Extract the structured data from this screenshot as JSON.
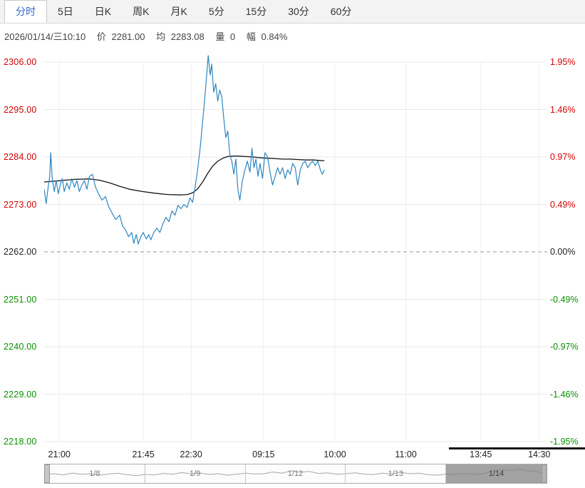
{
  "tabs": [
    {
      "label": "分时",
      "active": true
    },
    {
      "label": "5日",
      "active": false
    },
    {
      "label": "日K",
      "active": false
    },
    {
      "label": "周K",
      "active": false
    },
    {
      "label": "月K",
      "active": false
    },
    {
      "label": "5分",
      "active": false
    },
    {
      "label": "15分",
      "active": false
    },
    {
      "label": "30分",
      "active": false
    },
    {
      "label": "60分",
      "active": false
    }
  ],
  "info": {
    "datetime": "2026/01/14/三10:10",
    "price_label": "价",
    "price": "2281.00",
    "avg_label": "均",
    "avg": "2283.08",
    "volume_label": "量",
    "volume": "0",
    "range_label": "幅",
    "range": "0.84%"
  },
  "colors": {
    "up": "#d40000",
    "down": "#089000",
    "price_line": "#2e86c1",
    "avg_line": "#141414",
    "active_tab": "#3366cc",
    "grid": "#e9e9e9",
    "zero_line": "#999999"
  },
  "chart_data": {
    "type": "line",
    "title": "分时走势",
    "ylim": [
      2218,
      2306
    ],
    "zero_value": 2262,
    "grid": true,
    "ticks": [
      {
        "value": 2306,
        "left": "2306.00",
        "right": "1.95%",
        "tone": "up"
      },
      {
        "value": 2295,
        "left": "2295.00",
        "right": "1.46%",
        "tone": "up"
      },
      {
        "value": 2284,
        "left": "2284.00",
        "right": "0.97%",
        "tone": "up"
      },
      {
        "value": 2273,
        "left": "2273.00",
        "right": "0.49%",
        "tone": "up"
      },
      {
        "value": 2262,
        "left": "2262.00",
        "right": "0.00%",
        "tone": "zero"
      },
      {
        "value": 2251,
        "left": "2251.00",
        "right": "-0.49%",
        "tone": "down"
      },
      {
        "value": 2240,
        "left": "2240.00",
        "right": "-0.97%",
        "tone": "down"
      },
      {
        "value": 2229,
        "left": "2229.00",
        "right": "-1.46%",
        "tone": "down"
      },
      {
        "value": 2218,
        "left": "2218.00",
        "right": "-1.95%",
        "tone": "down"
      }
    ],
    "x_ticks": [
      {
        "label": "21:00",
        "f": 0.03
      },
      {
        "label": "21:45",
        "f": 0.197
      },
      {
        "label": "22:30",
        "f": 0.292
      },
      {
        "label": "09:15",
        "f": 0.436
      },
      {
        "label": "10:00",
        "f": 0.578
      },
      {
        "label": "11:00",
        "f": 0.719
      },
      {
        "label": "13:45",
        "f": 0.868
      },
      {
        "label": "14:30",
        "f": 0.984
      }
    ],
    "series": [
      {
        "name": "average",
        "color": "#141414",
        "width": 1.3,
        "points": [
          [
            0.0,
            2278.2
          ],
          [
            0.03,
            2278.5
          ],
          [
            0.06,
            2278.8
          ],
          [
            0.09,
            2278.9
          ],
          [
            0.11,
            2278.6
          ],
          [
            0.13,
            2278.0
          ],
          [
            0.15,
            2277.2
          ],
          [
            0.17,
            2276.5
          ],
          [
            0.195,
            2276.0
          ],
          [
            0.22,
            2275.6
          ],
          [
            0.245,
            2275.3
          ],
          [
            0.27,
            2275.2
          ],
          [
            0.285,
            2275.3
          ],
          [
            0.295,
            2275.7
          ],
          [
            0.305,
            2276.6
          ],
          [
            0.315,
            2278.2
          ],
          [
            0.325,
            2280.2
          ],
          [
            0.335,
            2281.9
          ],
          [
            0.345,
            2283.0
          ],
          [
            0.355,
            2283.7
          ],
          [
            0.365,
            2284.1
          ],
          [
            0.375,
            2284.2
          ],
          [
            0.385,
            2284.2
          ],
          [
            0.4,
            2284.1
          ],
          [
            0.415,
            2284.0
          ],
          [
            0.43,
            2283.8
          ],
          [
            0.445,
            2283.7
          ],
          [
            0.46,
            2283.6
          ],
          [
            0.475,
            2283.5
          ],
          [
            0.49,
            2283.5
          ],
          [
            0.505,
            2283.4
          ],
          [
            0.52,
            2283.3
          ],
          [
            0.535,
            2283.3
          ],
          [
            0.545,
            2283.2
          ],
          [
            0.557,
            2283.1
          ]
        ]
      },
      {
        "name": "price",
        "color": "#2e86c1",
        "width": 1.2,
        "points": [
          [
            0.0,
            2276.5
          ],
          [
            0.004,
            2273.2
          ],
          [
            0.008,
            2277.0
          ],
          [
            0.011,
            2279.5
          ],
          [
            0.013,
            2285.0
          ],
          [
            0.016,
            2279.0
          ],
          [
            0.02,
            2276.0
          ],
          [
            0.024,
            2278.5
          ],
          [
            0.028,
            2275.5
          ],
          [
            0.032,
            2277.5
          ],
          [
            0.036,
            2279.0
          ],
          [
            0.04,
            2276.0
          ],
          [
            0.045,
            2278.0
          ],
          [
            0.05,
            2276.5
          ],
          [
            0.055,
            2279.0
          ],
          [
            0.06,
            2277.0
          ],
          [
            0.065,
            2278.5
          ],
          [
            0.07,
            2276.0
          ],
          [
            0.075,
            2277.5
          ],
          [
            0.08,
            2278.5
          ],
          [
            0.085,
            2276.5
          ],
          [
            0.09,
            2279.5
          ],
          [
            0.096,
            2280.0
          ],
          [
            0.102,
            2277.0
          ],
          [
            0.108,
            2275.5
          ],
          [
            0.115,
            2274.0
          ],
          [
            0.122,
            2274.8
          ],
          [
            0.128,
            2272.5
          ],
          [
            0.135,
            2271.0
          ],
          [
            0.142,
            2269.5
          ],
          [
            0.15,
            2270.5
          ],
          [
            0.156,
            2268.0
          ],
          [
            0.162,
            2267.0
          ],
          [
            0.168,
            2265.5
          ],
          [
            0.174,
            2266.5
          ],
          [
            0.178,
            2264.0
          ],
          [
            0.183,
            2266.0
          ],
          [
            0.187,
            2263.8
          ],
          [
            0.192,
            2265.5
          ],
          [
            0.197,
            2266.5
          ],
          [
            0.203,
            2265.0
          ],
          [
            0.208,
            2266.0
          ],
          [
            0.212,
            2264.8
          ],
          [
            0.218,
            2266.5
          ],
          [
            0.224,
            2267.5
          ],
          [
            0.23,
            2266.5
          ],
          [
            0.236,
            2268.5
          ],
          [
            0.242,
            2270.0
          ],
          [
            0.248,
            2269.0
          ],
          [
            0.254,
            2271.5
          ],
          [
            0.26,
            2270.5
          ],
          [
            0.266,
            2272.8
          ],
          [
            0.272,
            2272.0
          ],
          [
            0.278,
            2273.0
          ],
          [
            0.284,
            2272.3
          ],
          [
            0.29,
            2274.5
          ],
          [
            0.295,
            2273.5
          ],
          [
            0.3,
            2277.0
          ],
          [
            0.305,
            2281.0
          ],
          [
            0.31,
            2286.0
          ],
          [
            0.314,
            2291.0
          ],
          [
            0.318,
            2296.0
          ],
          [
            0.322,
            2301.5
          ],
          [
            0.326,
            2307.5
          ],
          [
            0.33,
            2303.0
          ],
          [
            0.333,
            2305.5
          ],
          [
            0.337,
            2299.0
          ],
          [
            0.341,
            2301.0
          ],
          [
            0.345,
            2297.0
          ],
          [
            0.349,
            2299.5
          ],
          [
            0.353,
            2298.0
          ],
          [
            0.357,
            2293.0
          ],
          [
            0.361,
            2288.5
          ],
          [
            0.365,
            2290.0
          ],
          [
            0.369,
            2284.5
          ],
          [
            0.373,
            2283.0
          ],
          [
            0.377,
            2280.0
          ],
          [
            0.381,
            2283.5
          ],
          [
            0.385,
            2276.5
          ],
          [
            0.389,
            2274.0
          ],
          [
            0.394,
            2278.5
          ],
          [
            0.399,
            2281.0
          ],
          [
            0.404,
            2283.0
          ],
          [
            0.409,
            2280.5
          ],
          [
            0.413,
            2286.0
          ],
          [
            0.417,
            2281.5
          ],
          [
            0.421,
            2283.5
          ],
          [
            0.425,
            2279.5
          ],
          [
            0.429,
            2282.5
          ],
          [
            0.434,
            2279.0
          ],
          [
            0.439,
            2285.0
          ],
          [
            0.444,
            2284.0
          ],
          [
            0.449,
            2280.5
          ],
          [
            0.454,
            2277.5
          ],
          [
            0.459,
            2279.5
          ],
          [
            0.464,
            2281.5
          ],
          [
            0.469,
            2280.0
          ],
          [
            0.474,
            2281.5
          ],
          [
            0.479,
            2279.0
          ],
          [
            0.484,
            2281.0
          ],
          [
            0.489,
            2280.0
          ],
          [
            0.494,
            2282.5
          ],
          [
            0.499,
            2281.5
          ],
          [
            0.504,
            2277.5
          ],
          [
            0.509,
            2281.0
          ],
          [
            0.514,
            2282.5
          ],
          [
            0.519,
            2283.0
          ],
          [
            0.524,
            2281.5
          ],
          [
            0.529,
            2282.5
          ],
          [
            0.534,
            2283.0
          ],
          [
            0.539,
            2282.0
          ],
          [
            0.544,
            2283.0
          ],
          [
            0.549,
            2281.0
          ],
          [
            0.553,
            2280.0
          ],
          [
            0.557,
            2281.0
          ]
        ]
      }
    ]
  },
  "navigator": {
    "dates": [
      "1/8",
      "1/9",
      "1/12",
      "1/13",
      "1/14"
    ],
    "selected_index": 4,
    "spark": [
      0.55,
      0.5,
      0.58,
      0.46,
      0.54,
      0.5,
      0.6,
      0.52,
      0.47,
      0.57,
      0.63,
      0.55,
      0.58,
      0.48,
      0.54,
      0.42,
      0.5,
      0.45,
      0.55,
      0.5,
      0.6,
      0.53,
      0.46,
      0.52,
      0.5,
      0.38,
      0.46,
      0.3,
      0.4,
      0.34,
      0.48,
      0.44,
      0.54,
      0.5,
      0.44,
      0.52,
      0.56,
      0.46,
      0.52,
      0.4,
      0.5,
      0.46,
      0.56,
      0.6,
      0.52,
      0.56,
      0.48,
      0.54,
      0.52,
      0.34,
      0.22,
      0.28,
      0.16,
      0.3,
      0.38,
      0.46
    ]
  }
}
